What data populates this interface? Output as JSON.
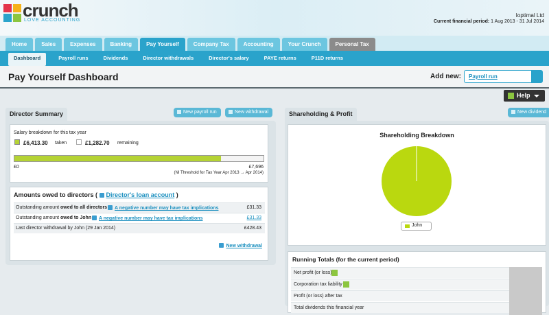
{
  "header": {
    "logo": "crunch",
    "tagline": "LOVE ACCOUNTING",
    "company": "Ioptimal Ltd",
    "period_label": "Current financial period:",
    "period": "1 Aug 2013 - 31 Jul 2014"
  },
  "tabs": [
    "Home",
    "Sales",
    "Expenses",
    "Banking",
    "Pay Yourself",
    "Company Tax",
    "Accounting",
    "Your Crunch",
    "Personal Tax"
  ],
  "subnav": [
    "Dashboard",
    "Payroll runs",
    "Dividends",
    "Director withdrawals",
    "Director's salary",
    "PAYE returns",
    "P11D returns"
  ],
  "page": {
    "title": "Pay Yourself Dashboard",
    "add_new_label": "Add new:",
    "add_new_value": "Payroll run",
    "help": "Help"
  },
  "director_summary": {
    "title": "Director Summary",
    "buttons": [
      "New payroll run",
      "New withdrawal"
    ],
    "salary": {
      "heading": "Salary breakdown for this tax year",
      "taken": "£6,413.30",
      "taken_label": "taken",
      "remaining": "£1,282.70",
      "remaining_label": "remaining",
      "min": "£0",
      "max": "£7,696",
      "note": "(NI Threshold for Tax Year Apr 2013 → Apr 2014)"
    },
    "owed": {
      "title": "Amounts owed to directors (",
      "link": "Director's loan account",
      "title_end": ")",
      "rows": [
        {
          "label": "Outstanding amount",
          "bold": "owed to all directors",
          "link": "A negative number may have tax implications",
          "amount": "£31.33"
        },
        {
          "label": "Outstanding amount",
          "bold": "owed to John",
          "link": "A negative number may have tax implications",
          "amount": "£31.33"
        },
        {
          "label": "Last director withdrawal by John (29 Jan 2014)",
          "amount": "£428.43"
        }
      ],
      "footer_link": "New withdrawal"
    }
  },
  "shareholding": {
    "title": "Shareholding & Profit",
    "button": "New dividend",
    "chart_title": "Shareholding Breakdown",
    "legend": "John"
  },
  "running_totals": {
    "title": "Running Totals (for the current period)",
    "rows": [
      "Net profit (or loss)",
      "Corporation tax liability",
      "Profit (or loss) after tax",
      "Total dividends this financial year"
    ]
  }
}
